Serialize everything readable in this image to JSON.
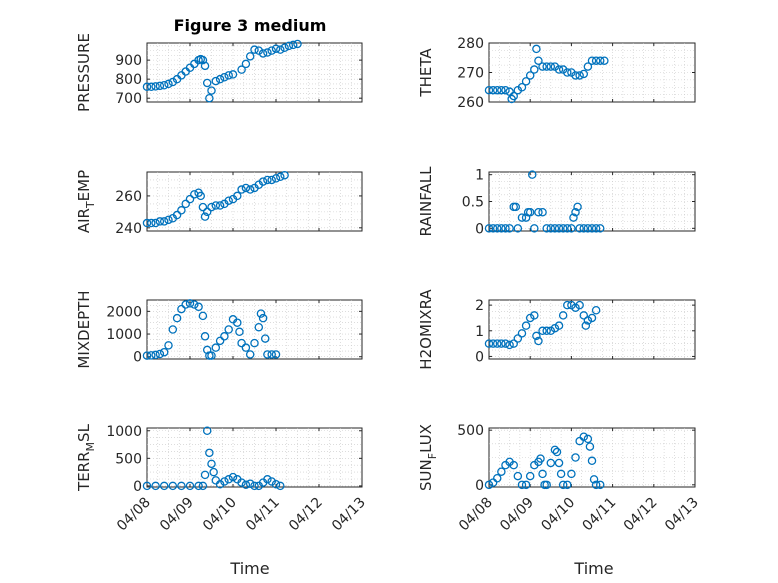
{
  "figure": {
    "title": "Figure 3 medium",
    "xlabel": "Time"
  },
  "chart_data": [
    {
      "type": "scatter",
      "ylabel": "PRESSURE",
      "ylim": [
        680,
        990
      ],
      "yticks": [
        700,
        800,
        900
      ],
      "grid": true,
      "points": [
        [
          0,
          760
        ],
        [
          0.1,
          760
        ],
        [
          0.2,
          762
        ],
        [
          0.3,
          765
        ],
        [
          0.4,
          768
        ],
        [
          0.5,
          775
        ],
        [
          0.6,
          785
        ],
        [
          0.7,
          800
        ],
        [
          0.8,
          820
        ],
        [
          0.9,
          840
        ],
        [
          1.0,
          860
        ],
        [
          1.1,
          880
        ],
        [
          1.2,
          900
        ],
        [
          1.25,
          905
        ],
        [
          1.3,
          900
        ],
        [
          1.35,
          870
        ],
        [
          1.4,
          780
        ],
        [
          1.45,
          700
        ],
        [
          1.5,
          740
        ],
        [
          1.6,
          790
        ],
        [
          1.7,
          800
        ],
        [
          1.8,
          810
        ],
        [
          1.9,
          820
        ],
        [
          2.0,
          825
        ],
        [
          2.2,
          850
        ],
        [
          2.3,
          880
        ],
        [
          2.4,
          920
        ],
        [
          2.5,
          955
        ],
        [
          2.6,
          950
        ],
        [
          2.7,
          935
        ],
        [
          2.8,
          940
        ],
        [
          2.9,
          950
        ],
        [
          3.0,
          960
        ],
        [
          3.1,
          955
        ],
        [
          3.2,
          965
        ],
        [
          3.3,
          975
        ],
        [
          3.4,
          980
        ],
        [
          3.5,
          985
        ]
      ]
    },
    {
      "type": "scatter",
      "ylabel": "THETA",
      "ylim": [
        260,
        280
      ],
      "yticks": [
        260,
        270,
        280
      ],
      "grid": true,
      "points": [
        [
          0,
          264
        ],
        [
          0.1,
          264
        ],
        [
          0.2,
          264
        ],
        [
          0.3,
          264
        ],
        [
          0.4,
          264
        ],
        [
          0.5,
          263.5
        ],
        [
          0.55,
          261
        ],
        [
          0.6,
          262
        ],
        [
          0.7,
          264
        ],
        [
          0.8,
          265
        ],
        [
          0.9,
          267
        ],
        [
          1.0,
          269
        ],
        [
          1.1,
          271
        ],
        [
          1.15,
          278
        ],
        [
          1.2,
          274
        ],
        [
          1.3,
          272
        ],
        [
          1.4,
          272
        ],
        [
          1.5,
          272
        ],
        [
          1.6,
          272
        ],
        [
          1.7,
          271
        ],
        [
          1.8,
          271
        ],
        [
          1.9,
          270
        ],
        [
          2.0,
          270
        ],
        [
          2.1,
          269
        ],
        [
          2.2,
          269
        ],
        [
          2.3,
          269.5
        ],
        [
          2.4,
          272
        ],
        [
          2.5,
          274
        ],
        [
          2.6,
          274
        ],
        [
          2.7,
          274
        ],
        [
          2.8,
          274
        ]
      ]
    },
    {
      "type": "scatter",
      "ylabel": "AIR_TEMP",
      "ylim": [
        238,
        275
      ],
      "yticks": [
        240,
        260
      ],
      "grid": true,
      "points": [
        [
          0,
          243
        ],
        [
          0.1,
          243
        ],
        [
          0.2,
          243
        ],
        [
          0.3,
          244
        ],
        [
          0.4,
          244
        ],
        [
          0.5,
          245
        ],
        [
          0.6,
          246
        ],
        [
          0.7,
          248
        ],
        [
          0.8,
          251
        ],
        [
          0.9,
          255
        ],
        [
          1.0,
          258
        ],
        [
          1.1,
          261
        ],
        [
          1.2,
          262
        ],
        [
          1.25,
          260
        ],
        [
          1.3,
          253
        ],
        [
          1.35,
          247
        ],
        [
          1.4,
          250
        ],
        [
          1.5,
          253
        ],
        [
          1.6,
          254
        ],
        [
          1.7,
          254
        ],
        [
          1.8,
          255
        ],
        [
          1.9,
          257
        ],
        [
          2.0,
          258
        ],
        [
          2.1,
          260
        ],
        [
          2.2,
          264
        ],
        [
          2.3,
          265
        ],
        [
          2.4,
          264
        ],
        [
          2.5,
          265
        ],
        [
          2.6,
          267
        ],
        [
          2.7,
          269
        ],
        [
          2.8,
          270
        ],
        [
          2.9,
          270
        ],
        [
          3.0,
          271
        ],
        [
          3.1,
          272
        ],
        [
          3.2,
          273
        ]
      ]
    },
    {
      "type": "scatter",
      "ylabel": "RAINFALL",
      "ylim": [
        -0.05,
        1.05
      ],
      "yticks": [
        0,
        0.5,
        1
      ],
      "yticklabels": [
        "0",
        "0.5",
        "1"
      ],
      "grid": true,
      "points": [
        [
          0,
          0
        ],
        [
          0.1,
          0
        ],
        [
          0.2,
          0
        ],
        [
          0.3,
          0
        ],
        [
          0.4,
          0
        ],
        [
          0.5,
          0
        ],
        [
          0.6,
          0.4
        ],
        [
          0.65,
          0.4
        ],
        [
          0.7,
          0
        ],
        [
          0.8,
          0.2
        ],
        [
          0.9,
          0.2
        ],
        [
          0.95,
          0.3
        ],
        [
          1.0,
          0.3
        ],
        [
          1.05,
          1
        ],
        [
          1.1,
          0
        ],
        [
          1.2,
          0.3
        ],
        [
          1.3,
          0.3
        ],
        [
          1.4,
          0
        ],
        [
          1.5,
          0
        ],
        [
          1.6,
          0
        ],
        [
          1.7,
          0
        ],
        [
          1.8,
          0
        ],
        [
          1.9,
          0
        ],
        [
          2.0,
          0
        ],
        [
          2.05,
          0.2
        ],
        [
          2.1,
          0.3
        ],
        [
          2.15,
          0.4
        ],
        [
          2.2,
          0
        ],
        [
          2.3,
          0
        ],
        [
          2.4,
          0
        ],
        [
          2.5,
          0
        ],
        [
          2.6,
          0
        ],
        [
          2.7,
          0
        ]
      ]
    },
    {
      "type": "scatter",
      "ylabel": "MIXDEPTH",
      "ylim": [
        -100,
        2500
      ],
      "yticks": [
        0,
        1000,
        2000
      ],
      "grid": true,
      "points": [
        [
          0,
          50
        ],
        [
          0.1,
          60
        ],
        [
          0.2,
          80
        ],
        [
          0.3,
          120
        ],
        [
          0.4,
          200
        ],
        [
          0.5,
          500
        ],
        [
          0.6,
          1200
        ],
        [
          0.7,
          1700
        ],
        [
          0.8,
          2100
        ],
        [
          0.9,
          2300
        ],
        [
          1.0,
          2350
        ],
        [
          1.1,
          2300
        ],
        [
          1.2,
          2200
        ],
        [
          1.3,
          1800
        ],
        [
          1.35,
          900
        ],
        [
          1.4,
          300
        ],
        [
          1.45,
          50
        ],
        [
          1.5,
          50
        ],
        [
          1.6,
          400
        ],
        [
          1.7,
          700
        ],
        [
          1.8,
          900
        ],
        [
          1.9,
          1200
        ],
        [
          2.0,
          1650
        ],
        [
          2.1,
          1500
        ],
        [
          2.15,
          1100
        ],
        [
          2.2,
          600
        ],
        [
          2.3,
          400
        ],
        [
          2.4,
          100
        ],
        [
          2.5,
          600
        ],
        [
          2.6,
          1300
        ],
        [
          2.65,
          1900
        ],
        [
          2.7,
          1700
        ],
        [
          2.75,
          800
        ],
        [
          2.8,
          100
        ],
        [
          2.9,
          100
        ],
        [
          3.0,
          100
        ]
      ]
    },
    {
      "type": "scatter",
      "ylabel": "H2OMIXRA",
      "ylim": [
        -0.1,
        2.2
      ],
      "yticks": [
        0,
        1,
        2
      ],
      "grid": true,
      "points": [
        [
          0,
          0.5
        ],
        [
          0.1,
          0.5
        ],
        [
          0.2,
          0.5
        ],
        [
          0.3,
          0.5
        ],
        [
          0.4,
          0.5
        ],
        [
          0.5,
          0.45
        ],
        [
          0.6,
          0.5
        ],
        [
          0.7,
          0.7
        ],
        [
          0.8,
          0.9
        ],
        [
          0.9,
          1.2
        ],
        [
          1.0,
          1.5
        ],
        [
          1.1,
          1.6
        ],
        [
          1.15,
          0.8
        ],
        [
          1.2,
          0.6
        ],
        [
          1.3,
          1.0
        ],
        [
          1.4,
          1.0
        ],
        [
          1.5,
          1.0
        ],
        [
          1.6,
          1.1
        ],
        [
          1.7,
          1.2
        ],
        [
          1.8,
          1.6
        ],
        [
          1.9,
          2.0
        ],
        [
          2.0,
          2.0
        ],
        [
          2.1,
          1.9
        ],
        [
          2.2,
          2.0
        ],
        [
          2.3,
          1.6
        ],
        [
          2.35,
          1.2
        ],
        [
          2.4,
          1.4
        ],
        [
          2.5,
          1.5
        ],
        [
          2.6,
          1.8
        ]
      ]
    },
    {
      "type": "scatter",
      "ylabel": "TERR_MSL",
      "ylim": [
        -20,
        1050
      ],
      "yticks": [
        0,
        500,
        1000
      ],
      "grid": true,
      "points": [
        [
          0,
          0
        ],
        [
          0.2,
          0
        ],
        [
          0.4,
          0
        ],
        [
          0.6,
          0
        ],
        [
          0.8,
          0
        ],
        [
          1.0,
          0
        ],
        [
          1.2,
          0
        ],
        [
          1.3,
          0
        ],
        [
          1.35,
          200
        ],
        [
          1.4,
          1000
        ],
        [
          1.45,
          600
        ],
        [
          1.5,
          400
        ],
        [
          1.55,
          250
        ],
        [
          1.6,
          100
        ],
        [
          1.7,
          30
        ],
        [
          1.8,
          80
        ],
        [
          1.9,
          120
        ],
        [
          2.0,
          160
        ],
        [
          2.1,
          120
        ],
        [
          2.2,
          60
        ],
        [
          2.3,
          20
        ],
        [
          2.4,
          40
        ],
        [
          2.5,
          0
        ],
        [
          2.6,
          0
        ],
        [
          2.7,
          60
        ],
        [
          2.8,
          120
        ],
        [
          2.9,
          80
        ],
        [
          3.0,
          30
        ],
        [
          3.1,
          0
        ]
      ]
    },
    {
      "type": "scatter",
      "ylabel": "SUN_FLUX",
      "ylim": [
        -20,
        520
      ],
      "yticks": [
        0,
        500
      ],
      "grid": true,
      "points": [
        [
          0,
          0
        ],
        [
          0.1,
          20
        ],
        [
          0.2,
          60
        ],
        [
          0.3,
          120
        ],
        [
          0.4,
          180
        ],
        [
          0.5,
          210
        ],
        [
          0.6,
          180
        ],
        [
          0.7,
          80
        ],
        [
          0.8,
          0
        ],
        [
          0.9,
          0
        ],
        [
          1.0,
          80
        ],
        [
          1.1,
          180
        ],
        [
          1.2,
          210
        ],
        [
          1.25,
          240
        ],
        [
          1.3,
          100
        ],
        [
          1.35,
          0
        ],
        [
          1.4,
          0
        ],
        [
          1.5,
          200
        ],
        [
          1.6,
          320
        ],
        [
          1.65,
          300
        ],
        [
          1.7,
          200
        ],
        [
          1.75,
          100
        ],
        [
          1.8,
          0
        ],
        [
          1.9,
          0
        ],
        [
          2.0,
          100
        ],
        [
          2.1,
          250
        ],
        [
          2.2,
          400
        ],
        [
          2.3,
          440
        ],
        [
          2.4,
          420
        ],
        [
          2.45,
          350
        ],
        [
          2.5,
          220
        ],
        [
          2.55,
          50
        ],
        [
          2.6,
          0
        ],
        [
          2.7,
          0
        ]
      ]
    }
  ],
  "xaxis": {
    "ticks": [
      0,
      1,
      2,
      3,
      4,
      5
    ],
    "ticklabels": [
      "04/08",
      "04/09",
      "04/10",
      "04/11",
      "04/12",
      "04/13"
    ],
    "xlim": [
      0,
      5
    ]
  },
  "style": {
    "marker_color": "#0072BD",
    "axis_color": "#262626"
  }
}
